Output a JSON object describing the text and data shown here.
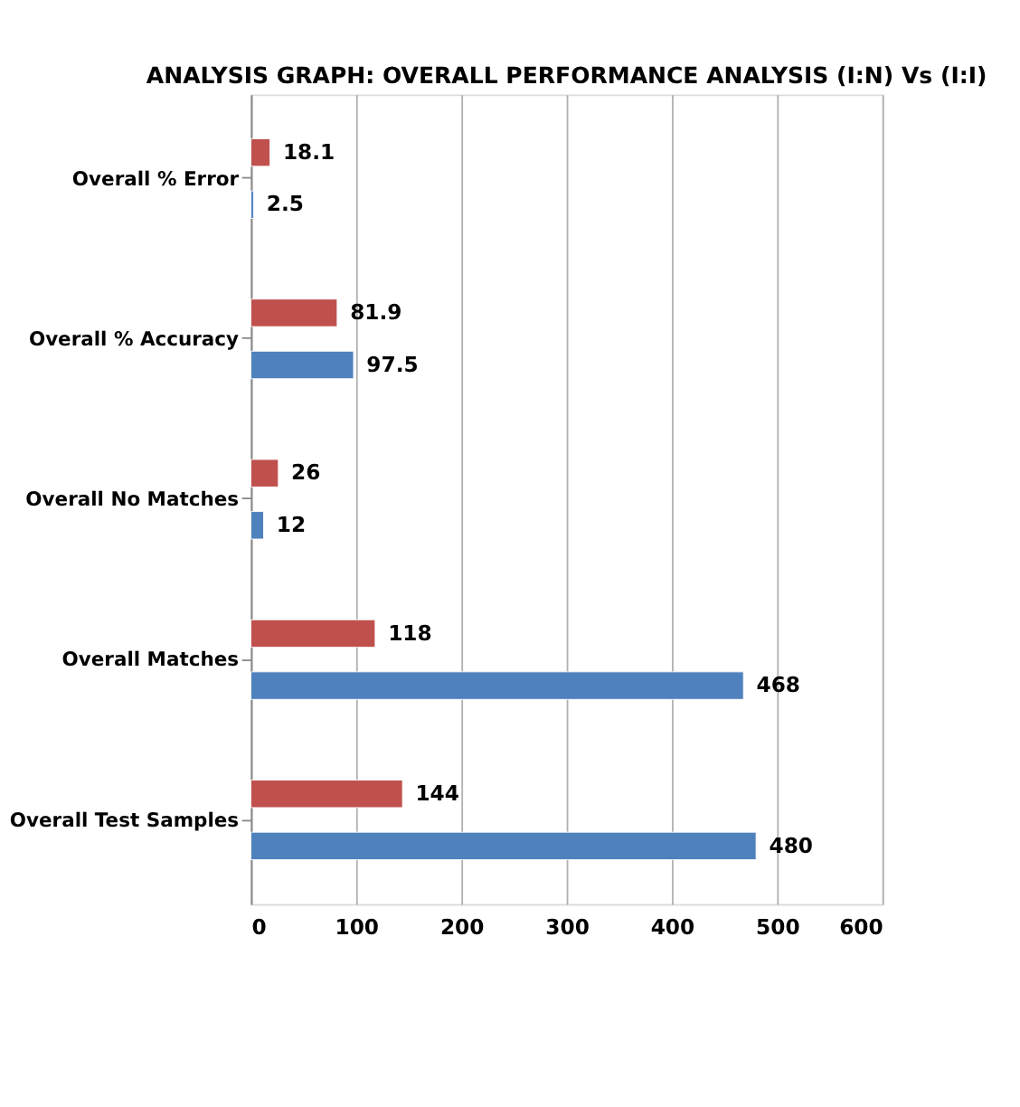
{
  "chart_data": {
    "type": "bar",
    "orientation": "horizontal",
    "title": "ANALYSIS GRAPH: OVERALL PERFORMANCE ANALYSIS (I:N) Vs (I:I)",
    "categories": [
      "Overall % Error",
      "Overall % Accuracy",
      "Overall No Matches",
      "Overall Matches",
      "Overall Test Samples"
    ],
    "series": [
      {
        "color": "#c0504d",
        "values": [
          18.1,
          81.9,
          26,
          118,
          144
        ]
      },
      {
        "color": "#4f81bd",
        "values": [
          2.5,
          97.5,
          12,
          468,
          480
        ]
      }
    ],
    "xlim": [
      0,
      600
    ],
    "xticks": [
      0,
      100,
      200,
      300,
      400,
      500,
      600
    ],
    "grid": "x",
    "data_labels": true
  }
}
